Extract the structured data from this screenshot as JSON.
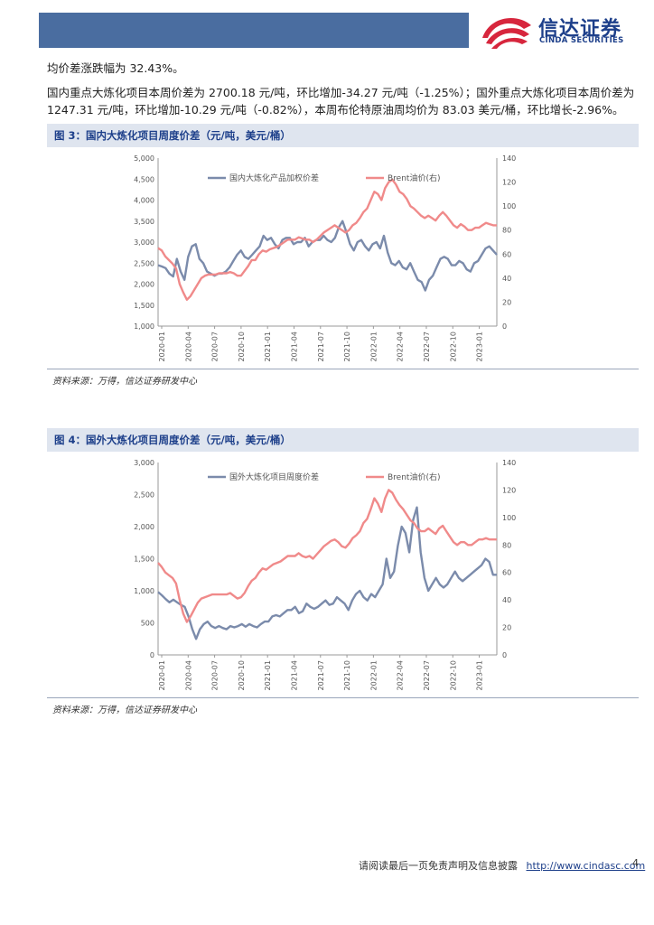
{
  "header": {
    "logo_cn": "信达证券",
    "logo_en": "CINDA SECURITIES",
    "colors": {
      "bar": "#4a6da0",
      "brand": "#1d3f8a",
      "logo_red": "#d7263d"
    }
  },
  "body": {
    "line1": "均价差涨跌幅为 32.43%。",
    "line2": "国内重点大炼化项目本周价差为 2700.18 元/吨，环比增加-34.27 元/吨（-1.25%）；国外重点大炼化项目本周价差为",
    "line3": "1247.31 元/吨，环比增加-10.29 元/吨（-0.82%），本周布伦特原油周均价为 83.03 美元/桶，环比增长-2.96%。"
  },
  "figure3": {
    "title": "图 3：国内大炼化项目周度价差（元/吨，美元/桶）",
    "source": "资料来源：万得，信达证券研发中心"
  },
  "figure4": {
    "title": "图 4：国外大炼化项目周度价差（元/吨，美元/桶）",
    "source": "资料来源：万得，信达证券研发中心"
  },
  "chart_data": [
    {
      "type": "line",
      "title": "国内大炼化项目周度价差",
      "x_ticks": [
        "2020-01",
        "2020-04",
        "2020-07",
        "2020-10",
        "2021-01",
        "2021-04",
        "2021-07",
        "2021-10",
        "2022-01",
        "2022-04",
        "2022-07",
        "2022-10",
        "2023-01"
      ],
      "left_ylim": [
        1000,
        5000
      ],
      "left_ticks": [
        "1,000",
        "1,500",
        "2,000",
        "2,500",
        "3,000",
        "3,500",
        "4,000",
        "4,500",
        "5,000"
      ],
      "right_ylim": [
        0,
        140
      ],
      "right_ticks": [
        "0",
        "20",
        "40",
        "60",
        "80",
        "100",
        "120",
        "140"
      ],
      "series": [
        {
          "name": "国内大炼化产品加权价差",
          "axis": "left",
          "color": "#7b8bab",
          "values": [
            2450,
            2420,
            2380,
            2250,
            2180,
            2600,
            2300,
            2100,
            2650,
            2900,
            2950,
            2600,
            2500,
            2300,
            2250,
            2200,
            2250,
            2250,
            2300,
            2400,
            2550,
            2700,
            2800,
            2650,
            2600,
            2700,
            2800,
            2900,
            3150,
            3050,
            3100,
            2950,
            2850,
            3050,
            3100,
            3100,
            2950,
            3000,
            3000,
            3100,
            2900,
            3000,
            3050,
            3050,
            3150,
            3050,
            3000,
            3100,
            3350,
            3500,
            3250,
            2950,
            2800,
            3000,
            3050,
            2900,
            2800,
            2950,
            3000,
            2850,
            3150,
            2750,
            2500,
            2450,
            2550,
            2400,
            2350,
            2500,
            2300,
            2100,
            2050,
            1850,
            2100,
            2200,
            2400,
            2600,
            2650,
            2600,
            2450,
            2450,
            2550,
            2500,
            2350,
            2300,
            2500,
            2550,
            2700,
            2850,
            2900,
            2800,
            2700
          ]
        },
        {
          "name": "Brent油价(右)",
          "axis": "right",
          "color": "#f08a8a",
          "values": [
            65,
            63,
            58,
            55,
            52,
            48,
            35,
            28,
            22,
            25,
            30,
            35,
            40,
            42,
            43,
            43,
            43,
            44,
            44,
            44,
            45,
            44,
            42,
            42,
            46,
            50,
            55,
            55,
            60,
            63,
            62,
            64,
            65,
            66,
            68,
            70,
            72,
            72,
            72,
            74,
            73,
            72,
            72,
            70,
            72,
            75,
            78,
            80,
            82,
            84,
            82,
            80,
            78,
            80,
            84,
            86,
            90,
            95,
            98,
            105,
            112,
            110,
            105,
            115,
            120,
            122,
            118,
            112,
            110,
            106,
            100,
            98,
            95,
            92,
            90,
            92,
            90,
            88,
            92,
            95,
            92,
            88,
            84,
            82,
            85,
            83,
            80,
            80,
            82,
            82,
            84,
            86,
            85,
            84,
            84
          ]
        }
      ]
    },
    {
      "type": "line",
      "title": "国外大炼化项目周度价差",
      "x_ticks": [
        "2020-01",
        "2020-04",
        "2020-07",
        "2020-10",
        "2021-01",
        "2021-04",
        "2021-07",
        "2021-10",
        "2022-01",
        "2022-04",
        "2022-07",
        "2022-10",
        "2023-01"
      ],
      "left_ylim": [
        0,
        3000
      ],
      "left_ticks": [
        "0",
        "500",
        "1,000",
        "1,500",
        "2,000",
        "2,500",
        "3,000"
      ],
      "right_ylim": [
        0,
        140
      ],
      "right_ticks": [
        "0",
        "20",
        "40",
        "60",
        "80",
        "100",
        "120",
        "140"
      ],
      "series": [
        {
          "name": "国外大炼化项目周度价差",
          "axis": "left",
          "color": "#7b8bab",
          "values": [
            980,
            930,
            870,
            820,
            860,
            820,
            780,
            750,
            600,
            400,
            250,
            400,
            480,
            520,
            450,
            420,
            450,
            420,
            400,
            450,
            430,
            450,
            480,
            440,
            480,
            450,
            430,
            480,
            520,
            520,
            600,
            620,
            600,
            650,
            700,
            700,
            750,
            650,
            680,
            800,
            750,
            720,
            750,
            800,
            850,
            780,
            800,
            900,
            850,
            800,
            700,
            850,
            950,
            1000,
            900,
            850,
            950,
            900,
            1000,
            1100,
            1500,
            1200,
            1300,
            1700,
            2000,
            1900,
            1600,
            2100,
            2300,
            1600,
            1200,
            1000,
            1100,
            1200,
            1100,
            1050,
            1100,
            1200,
            1300,
            1200,
            1150,
            1200,
            1250,
            1300,
            1350,
            1400,
            1500,
            1450,
            1250,
            1250
          ]
        },
        {
          "name": "Brent油价(右)",
          "axis": "right",
          "color": "#f08a8a",
          "values": [
            67,
            64,
            60,
            58,
            56,
            52,
            40,
            30,
            24,
            28,
            33,
            38,
            41,
            42,
            43,
            44,
            44,
            44,
            44,
            44,
            45,
            43,
            41,
            42,
            45,
            50,
            54,
            56,
            60,
            63,
            62,
            64,
            66,
            67,
            68,
            70,
            72,
            72,
            72,
            74,
            72,
            71,
            72,
            70,
            73,
            76,
            79,
            81,
            83,
            84,
            82,
            79,
            78,
            81,
            85,
            87,
            90,
            96,
            99,
            106,
            114,
            110,
            104,
            114,
            120,
            118,
            113,
            109,
            106,
            102,
            98,
            96,
            92,
            90,
            90,
            92,
            90,
            88,
            92,
            94,
            90,
            86,
            82,
            80,
            82,
            82,
            80,
            80,
            82,
            84,
            84,
            85,
            84,
            84,
            84
          ]
        }
      ]
    }
  ],
  "footer": {
    "disclaimer": "请阅读最后一页免责声明及信息披露",
    "url": "http://www.cindasc.com",
    "page": "4"
  }
}
